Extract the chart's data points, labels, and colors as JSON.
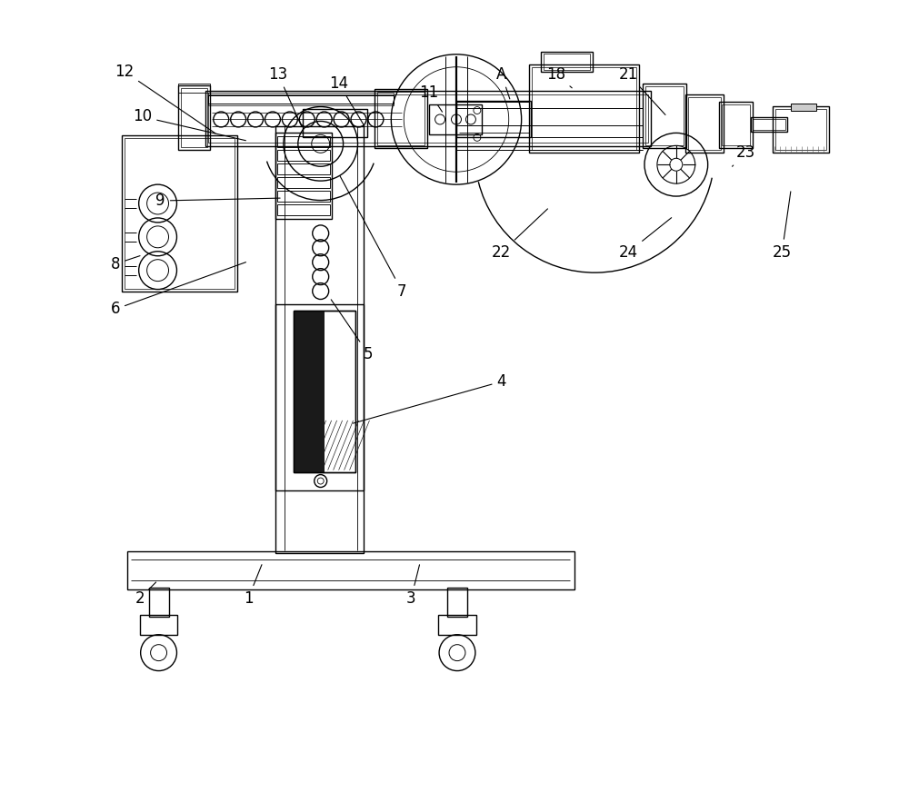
{
  "bg_color": "#ffffff",
  "lc": "#000000",
  "lw": 1.0,
  "fig_w": 10.0,
  "fig_h": 8.72,
  "xlim": [
    0,
    10
  ],
  "ylim": [
    0,
    8.72
  ],
  "annotations": [
    [
      "12",
      1.35,
      7.95,
      2.38,
      7.25
    ],
    [
      "10",
      1.55,
      7.45,
      2.72,
      7.18
    ],
    [
      "13",
      3.05,
      7.92,
      3.32,
      7.32
    ],
    [
      "14",
      3.72,
      7.82,
      4.02,
      7.32
    ],
    [
      "11",
      4.72,
      7.72,
      4.88,
      7.48
    ],
    [
      "A",
      5.52,
      7.92,
      5.62,
      7.62
    ],
    [
      "18",
      6.12,
      7.92,
      6.32,
      7.75
    ],
    [
      "21",
      6.92,
      7.92,
      7.35,
      7.45
    ],
    [
      "23",
      8.22,
      7.05,
      8.05,
      6.88
    ],
    [
      "9",
      1.75,
      6.52,
      3.1,
      6.55
    ],
    [
      "6",
      1.25,
      5.32,
      2.72,
      5.85
    ],
    [
      "7",
      4.42,
      5.52,
      3.72,
      6.82
    ],
    [
      "5",
      4.05,
      4.82,
      3.62,
      5.45
    ],
    [
      "4",
      5.52,
      4.52,
      3.85,
      4.05
    ],
    [
      "8",
      1.25,
      5.82,
      1.55,
      5.92
    ],
    [
      "22",
      5.52,
      5.95,
      6.05,
      6.45
    ],
    [
      "24",
      6.92,
      5.95,
      7.42,
      6.35
    ],
    [
      "25",
      8.62,
      5.95,
      8.72,
      6.65
    ],
    [
      "1",
      2.72,
      2.12,
      2.88,
      2.52
    ],
    [
      "2",
      1.52,
      2.12,
      1.72,
      2.32
    ],
    [
      "3",
      4.52,
      2.12,
      4.62,
      2.52
    ]
  ]
}
